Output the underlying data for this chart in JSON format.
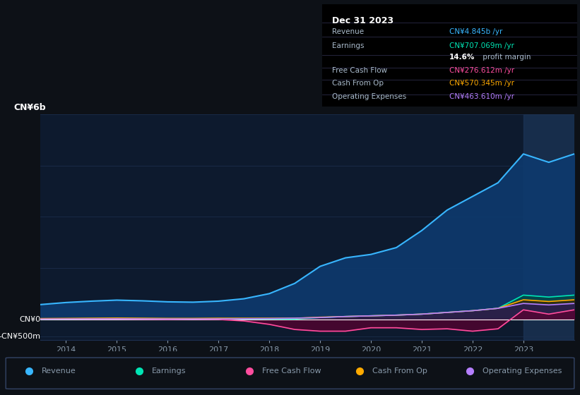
{
  "bg_color": "#0d1117",
  "plot_bg_color": "#0d1a2e",
  "grid_color": "#1e3050",
  "text_color": "#8899aa",
  "title_text_color": "#ffffff",
  "ylabel_text": "CN¥6b",
  "ylabel_neg_text": "-CN¥500m",
  "ylabel_zero_text": "CN¥0",
  "years": [
    2013.5,
    2014,
    2014.5,
    2015,
    2015.5,
    2016,
    2016.5,
    2017,
    2017.5,
    2018,
    2018.5,
    2019,
    2019.5,
    2020,
    2020.5,
    2021,
    2021.5,
    2022,
    2022.5,
    2023,
    2023.5,
    2024
  ],
  "revenue": [
    430,
    490,
    530,
    560,
    540,
    510,
    500,
    530,
    600,
    750,
    1050,
    1550,
    1800,
    1900,
    2100,
    2600,
    3200,
    3600,
    4000,
    4845,
    4600,
    4845
  ],
  "earnings": [
    10,
    15,
    18,
    20,
    18,
    15,
    10,
    12,
    10,
    8,
    5,
    50,
    80,
    100,
    120,
    150,
    200,
    250,
    320,
    707,
    650,
    707
  ],
  "free_cash_flow": [
    10,
    8,
    5,
    5,
    0,
    -5,
    0,
    -5,
    -50,
    -150,
    -300,
    -350,
    -350,
    -250,
    -250,
    -300,
    -280,
    -350,
    -280,
    276,
    150,
    276
  ],
  "cash_from_op": [
    20,
    25,
    30,
    35,
    30,
    25,
    25,
    30,
    30,
    30,
    30,
    60,
    80,
    100,
    120,
    150,
    200,
    250,
    320,
    570,
    520,
    570
  ],
  "operating_expenses": [
    5,
    8,
    10,
    12,
    10,
    8,
    8,
    10,
    15,
    20,
    30,
    50,
    80,
    100,
    120,
    150,
    200,
    250,
    320,
    463,
    420,
    463
  ],
  "revenue_color": "#38b6ff",
  "earnings_color": "#00e5b5",
  "free_cash_flow_color": "#ff4d9e",
  "cash_from_op_color": "#ffaa00",
  "operating_expenses_color": "#b57fff",
  "revenue_fill_color": "#0d3a6e",
  "earnings_fill_color": "#004d40",
  "free_cash_flow_fill_color": "#5c0030",
  "cash_from_op_fill_color": "#3d2800",
  "operating_expenses_fill_color": "#2a1a5e",
  "xmin": 2013.5,
  "xmax": 2024,
  "ymin": -600,
  "ymax": 6000,
  "tooltip_title": "Dec 31 2023",
  "revenue_value": "CN¥4.845b /yr",
  "earnings_value": "CN¥707.069m /yr",
  "profit_margin": "14.6%",
  "profit_margin_label": " profit margin",
  "fcf_value": "CN¥276.612m /yr",
  "cashop_value": "CN¥570.345m /yr",
  "opex_value": "CN¥463.610m /yr",
  "legend_items": [
    {
      "label": "Revenue",
      "color": "#38b6ff"
    },
    {
      "label": "Earnings",
      "color": "#00e5b5"
    },
    {
      "label": "Free Cash Flow",
      "color": "#ff4d9e"
    },
    {
      "label": "Cash From Op",
      "color": "#ffaa00"
    },
    {
      "label": "Operating Expenses",
      "color": "#b57fff"
    }
  ],
  "highlight_color": "#1e3a5f",
  "separator_color": "#333355",
  "label_color": "#aabbcc"
}
